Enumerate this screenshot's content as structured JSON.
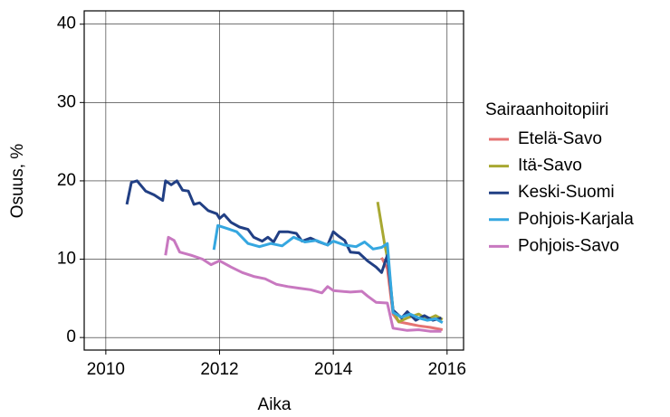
{
  "chart_data": {
    "type": "line",
    "x_label": "Aika",
    "y_label": "Osuus, %",
    "legend_title": "Sairaanhoitopiiri",
    "xlim": [
      2009.62,
      2016.29
    ],
    "xticks": [
      2010,
      2012,
      2014,
      2016
    ],
    "ylim": [
      -1.6,
      41.7
    ],
    "yticks": [
      0,
      10,
      20,
      30,
      40
    ],
    "grid": true,
    "legend": "right",
    "series": [
      {
        "name": "Etelä-Savo",
        "color": "#e57373",
        "x": [
          2014.85,
          2014.95,
          2015.05,
          2015.15,
          2015.3,
          2015.5,
          2015.7,
          2015.92
        ],
        "values": [
          10.2,
          8.8,
          3,
          2.0,
          1.8,
          1.5,
          1.3,
          1.0
        ]
      },
      {
        "name": "Itä-Savo",
        "color": "#a8a832",
        "x": [
          2014.78,
          2014.9,
          2014.97,
          2015.05,
          2015.15,
          2015.3,
          2015.5,
          2015.65,
          2015.8,
          2015.92
        ],
        "values": [
          17.3,
          12,
          9.5,
          3.5,
          2.0,
          2.5,
          3.0,
          2.3,
          2.8,
          2.3
        ]
      },
      {
        "name": "Keski-Suomi",
        "color": "#213f84",
        "x": [
          2010.37,
          2010.45,
          2010.55,
          2010.7,
          2010.85,
          2011.0,
          2011.05,
          2011.15,
          2011.25,
          2011.35,
          2011.45,
          2011.55,
          2011.65,
          2011.8,
          2011.95,
          2012.0,
          2012.08,
          2012.2,
          2012.35,
          2012.5,
          2012.6,
          2012.75,
          2012.85,
          2012.95,
          2013.05,
          2013.2,
          2013.35,
          2013.45,
          2013.6,
          2013.75,
          2013.9,
          2014.0,
          2014.1,
          2014.2,
          2014.3,
          2014.45,
          2014.6,
          2014.75,
          2014.85,
          2014.95,
          2015.05,
          2015.2,
          2015.3,
          2015.45,
          2015.6,
          2015.75,
          2015.9
        ],
        "values": [
          17,
          19.8,
          20,
          18.7,
          18.2,
          17.5,
          20,
          19.5,
          20,
          18.8,
          18.7,
          17,
          17.2,
          16.2,
          15.8,
          15.2,
          15.7,
          14.7,
          14.1,
          13.8,
          12.8,
          12.3,
          12.8,
          12.2,
          13.5,
          13.5,
          13.3,
          12.3,
          12.7,
          12.2,
          11.8,
          13.5,
          12.9,
          12.4,
          10.9,
          10.8,
          9.8,
          9.0,
          8.3,
          10.5,
          3.5,
          2.5,
          3.3,
          2.2,
          2.8,
          2.2,
          2.5
        ]
      },
      {
        "name": "Pohjois-Karjala",
        "color": "#35a7e0",
        "x": [
          2011.9,
          2011.97,
          2012.1,
          2012.3,
          2012.5,
          2012.7,
          2012.9,
          2013.1,
          2013.3,
          2013.5,
          2013.7,
          2013.9,
          2014.0,
          2014.2,
          2014.4,
          2014.55,
          2014.7,
          2014.85,
          2014.95,
          2015.05,
          2015.2,
          2015.35,
          2015.5,
          2015.65,
          2015.8,
          2015.92
        ],
        "values": [
          11.2,
          14.3,
          14.0,
          13.5,
          12.0,
          11.6,
          12.0,
          11.7,
          12.8,
          12.2,
          12.4,
          11.8,
          12.3,
          11.8,
          11.6,
          12.2,
          11.3,
          11.5,
          12.0,
          3.2,
          2.6,
          3.0,
          2.5,
          2.2,
          2.4,
          1.9
        ]
      },
      {
        "name": "Pohjois-Savo",
        "color": "#c878c0",
        "x": [
          2011.05,
          2011.1,
          2011.2,
          2011.3,
          2011.5,
          2011.7,
          2011.85,
          2012.0,
          2012.2,
          2012.4,
          2012.6,
          2012.8,
          2013.0,
          2013.2,
          2013.4,
          2013.6,
          2013.8,
          2013.9,
          2014.0,
          2014.3,
          2014.5,
          2014.6,
          2014.75,
          2014.95,
          2015.05,
          2015.3,
          2015.5,
          2015.7,
          2015.9
        ],
        "values": [
          10.5,
          12.8,
          12.4,
          10.9,
          10.5,
          10.0,
          9.3,
          9.8,
          9.0,
          8.3,
          7.8,
          7.5,
          6.8,
          6.5,
          6.3,
          6.1,
          5.7,
          6.5,
          6.0,
          5.8,
          5.9,
          5.3,
          4.5,
          4.4,
          1.2,
          0.9,
          1.0,
          0.8,
          0.8
        ]
      }
    ]
  }
}
